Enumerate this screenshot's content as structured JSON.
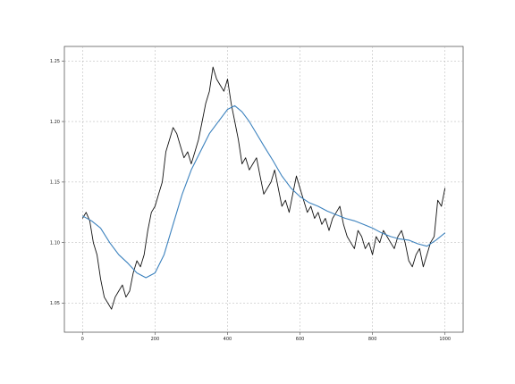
{
  "chart_data": {
    "type": "line",
    "title": "",
    "xlabel": "",
    "ylabel": "",
    "xlim": [
      -50,
      1050
    ],
    "ylim": [
      1.026,
      1.262
    ],
    "grid": true,
    "x_ticks": [
      0,
      200,
      400,
      600,
      800,
      1000
    ],
    "x_tick_labels": [
      "0",
      "200",
      "400",
      "600",
      "800",
      "1000"
    ],
    "y_ticks": [
      1.05,
      1.1,
      1.15,
      1.2,
      1.25
    ],
    "y_tick_labels": [
      "1.05",
      "1.10",
      "1.15",
      "1.20",
      "1.25"
    ],
    "series": [
      {
        "color": "#111111",
        "x": [
          0,
          10,
          20,
          30,
          40,
          50,
          60,
          70,
          80,
          90,
          100,
          110,
          120,
          130,
          140,
          150,
          160,
          170,
          180,
          190,
          200,
          210,
          220,
          230,
          240,
          250,
          260,
          270,
          280,
          290,
          300,
          310,
          320,
          330,
          340,
          350,
          360,
          370,
          380,
          390,
          400,
          410,
          420,
          430,
          440,
          450,
          460,
          470,
          480,
          490,
          500,
          510,
          520,
          530,
          540,
          550,
          560,
          570,
          580,
          590,
          600,
          610,
          620,
          630,
          640,
          650,
          660,
          670,
          680,
          690,
          700,
          710,
          720,
          730,
          740,
          750,
          760,
          770,
          780,
          790,
          800,
          810,
          820,
          830,
          840,
          850,
          860,
          870,
          880,
          890,
          900,
          910,
          920,
          930,
          940,
          950,
          960,
          970,
          980,
          990,
          1000
        ],
        "values": [
          1.12,
          1.125,
          1.118,
          1.1,
          1.09,
          1.07,
          1.055,
          1.05,
          1.045,
          1.055,
          1.06,
          1.065,
          1.055,
          1.06,
          1.075,
          1.085,
          1.08,
          1.09,
          1.11,
          1.125,
          1.13,
          1.14,
          1.15,
          1.175,
          1.185,
          1.195,
          1.19,
          1.18,
          1.17,
          1.175,
          1.165,
          1.175,
          1.185,
          1.2,
          1.215,
          1.225,
          1.245,
          1.235,
          1.23,
          1.225,
          1.235,
          1.215,
          1.2,
          1.185,
          1.165,
          1.17,
          1.16,
          1.165,
          1.17,
          1.155,
          1.14,
          1.145,
          1.15,
          1.16,
          1.145,
          1.13,
          1.135,
          1.125,
          1.14,
          1.155,
          1.145,
          1.135,
          1.125,
          1.13,
          1.12,
          1.125,
          1.115,
          1.12,
          1.11,
          1.12,
          1.125,
          1.13,
          1.115,
          1.105,
          1.1,
          1.095,
          1.11,
          1.105,
          1.095,
          1.1,
          1.09,
          1.105,
          1.1,
          1.11,
          1.105,
          1.1,
          1.095,
          1.105,
          1.11,
          1.1,
          1.085,
          1.08,
          1.09,
          1.095,
          1.08,
          1.09,
          1.1,
          1.105,
          1.135,
          1.13,
          1.145
        ]
      },
      {
        "color": "#3c82be",
        "x": [
          0,
          25,
          50,
          75,
          100,
          125,
          150,
          175,
          200,
          225,
          250,
          275,
          300,
          325,
          350,
          375,
          400,
          420,
          440,
          460,
          480,
          500,
          525,
          550,
          575,
          600,
          625,
          650,
          675,
          700,
          725,
          750,
          775,
          800,
          825,
          850,
          875,
          900,
          925,
          950,
          975,
          1000
        ],
        "values": [
          1.122,
          1.118,
          1.112,
          1.1,
          1.09,
          1.083,
          1.075,
          1.071,
          1.075,
          1.09,
          1.115,
          1.14,
          1.16,
          1.175,
          1.19,
          1.2,
          1.21,
          1.213,
          1.208,
          1.2,
          1.19,
          1.18,
          1.168,
          1.155,
          1.145,
          1.138,
          1.133,
          1.13,
          1.126,
          1.123,
          1.12,
          1.118,
          1.115,
          1.112,
          1.108,
          1.105,
          1.103,
          1.102,
          1.099,
          1.097,
          1.102,
          1.108
        ]
      }
    ]
  }
}
